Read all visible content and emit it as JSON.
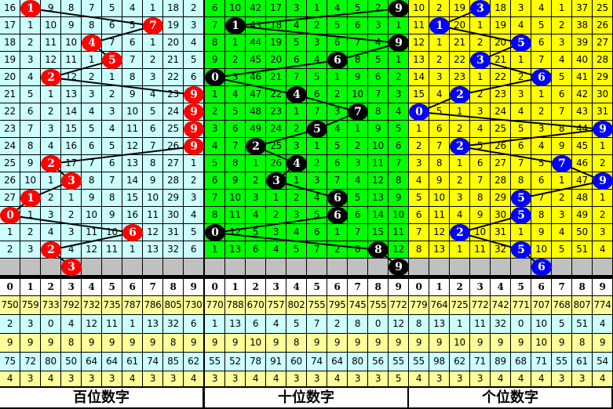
{
  "digits": [
    "0",
    "1",
    "2",
    "3",
    "4",
    "5",
    "6",
    "7",
    "8",
    "9"
  ],
  "colors": {
    "gray_row": "#c0c0c0",
    "stat_yellow": "#ffff99",
    "stat_cyan": "#ccffff",
    "grid": "#000000"
  },
  "panels": [
    {
      "label": "百位数字",
      "bg": "#ccffff",
      "ball_color": "#ff0000",
      "balls": [
        1,
        7,
        4,
        5,
        2,
        9,
        9,
        9,
        9,
        2,
        3,
        1,
        0,
        6,
        2
      ],
      "next_ball": 3,
      "rows": [
        [
          "16",
          null,
          "9",
          "8",
          "7",
          "5",
          "4",
          "1",
          "18",
          "2"
        ],
        [
          "17",
          "1",
          "10",
          "9",
          "8",
          "6",
          "5",
          null,
          "19",
          "3"
        ],
        [
          "18",
          "2",
          "11",
          "10",
          null,
          "7",
          "6",
          "1",
          "20",
          "4"
        ],
        [
          "19",
          "3",
          "12",
          "11",
          "1",
          null,
          "7",
          "2",
          "21",
          "5"
        ],
        [
          "20",
          "4",
          null,
          "12",
          "2",
          "1",
          "8",
          "3",
          "22",
          "6"
        ],
        [
          "21",
          "5",
          "1",
          "13",
          "3",
          "2",
          "9",
          "4",
          "23",
          null
        ],
        [
          "22",
          "6",
          "2",
          "14",
          "4",
          "3",
          "10",
          "5",
          "24",
          null
        ],
        [
          "23",
          "7",
          "3",
          "15",
          "5",
          "4",
          "11",
          "6",
          "25",
          null
        ],
        [
          "24",
          "8",
          "4",
          "16",
          "6",
          "5",
          "12",
          "7",
          "26",
          null
        ],
        [
          "25",
          "9",
          null,
          "17",
          "7",
          "6",
          "13",
          "8",
          "27",
          "1"
        ],
        [
          "26",
          "10",
          "1",
          null,
          "8",
          "7",
          "14",
          "9",
          "28",
          "2"
        ],
        [
          "27",
          null,
          "2",
          "1",
          "9",
          "8",
          "15",
          "10",
          "29",
          "3"
        ],
        [
          null,
          "1",
          "3",
          "2",
          "10",
          "9",
          "16",
          "11",
          "30",
          "4"
        ],
        [
          "1",
          "2",
          "4",
          "3",
          "11",
          "10",
          null,
          "12",
          "31",
          "5"
        ],
        [
          "2",
          "3",
          null,
          "4",
          "12",
          "11",
          "1",
          "13",
          "32",
          "6"
        ]
      ],
      "stats": [
        [
          "750",
          "759",
          "733",
          "792",
          "732",
          "735",
          "787",
          "786",
          "805",
          "730"
        ],
        [
          "2",
          "3",
          "0",
          "4",
          "12",
          "11",
          "1",
          "13",
          "32",
          "6"
        ],
        [
          "9",
          "9",
          "9",
          "8",
          "9",
          "9",
          "9",
          "9",
          "8",
          "9"
        ],
        [
          "75",
          "72",
          "80",
          "50",
          "64",
          "64",
          "61",
          "74",
          "85",
          "62"
        ],
        [
          "4",
          "3",
          "4",
          "3",
          "3",
          "3",
          "4",
          "3",
          "3",
          "4"
        ]
      ]
    },
    {
      "label": "十位数字",
      "bg": "#00ff00",
      "ball_color": "#000000",
      "balls": [
        9,
        1,
        9,
        6,
        0,
        4,
        7,
        5,
        2,
        4,
        3,
        6,
        6,
        0,
        8
      ],
      "next_ball": 9,
      "rows": [
        [
          "6",
          "10",
          "42",
          "17",
          "3",
          "1",
          "4",
          "5",
          "2",
          null
        ],
        [
          "7",
          null,
          "43",
          "18",
          "4",
          "2",
          "5",
          "6",
          "3",
          "1"
        ],
        [
          "8",
          "1",
          "44",
          "19",
          "5",
          "3",
          "6",
          "7",
          "4",
          null
        ],
        [
          "9",
          "2",
          "45",
          "20",
          "6",
          "4",
          null,
          "8",
          "5",
          "1"
        ],
        [
          null,
          "3",
          "46",
          "21",
          "7",
          "5",
          "1",
          "9",
          "6",
          "2"
        ],
        [
          "1",
          "4",
          "47",
          "22",
          null,
          "6",
          "2",
          "10",
          "7",
          "3"
        ],
        [
          "2",
          "5",
          "48",
          "23",
          "1",
          "7",
          "3",
          null,
          "8",
          "4"
        ],
        [
          "3",
          "6",
          "49",
          "24",
          "2",
          null,
          "4",
          "1",
          "9",
          "5"
        ],
        [
          "4",
          "7",
          null,
          "25",
          "3",
          "1",
          "5",
          "2",
          "10",
          "6"
        ],
        [
          "5",
          "8",
          "1",
          "26",
          null,
          "2",
          "6",
          "3",
          "11",
          "7"
        ],
        [
          "6",
          "9",
          "2",
          null,
          "1",
          "3",
          "7",
          "4",
          "12",
          "8"
        ],
        [
          "7",
          "10",
          "3",
          "1",
          "2",
          "4",
          null,
          "5",
          "13",
          "9"
        ],
        [
          "8",
          "11",
          "4",
          "2",
          "3",
          "5",
          null,
          "6",
          "14",
          "10"
        ],
        [
          null,
          "12",
          "5",
          "3",
          "4",
          "6",
          "1",
          "7",
          "15",
          "11"
        ],
        [
          "1",
          "13",
          "6",
          "4",
          "5",
          "7",
          "2",
          "8",
          null,
          "12"
        ]
      ],
      "stats": [
        [
          "770",
          "788",
          "670",
          "757",
          "802",
          "755",
          "795",
          "745",
          "755",
          "772"
        ],
        [
          "1",
          "13",
          "6",
          "4",
          "5",
          "7",
          "2",
          "8",
          "0",
          "12"
        ],
        [
          "9",
          "9",
          "10",
          "9",
          "8",
          "9",
          "9",
          "9",
          "9",
          "9"
        ],
        [
          "55",
          "52",
          "78",
          "91",
          "60",
          "74",
          "64",
          "80",
          "56",
          "55"
        ],
        [
          "3",
          "3",
          "4",
          "4",
          "3",
          "3",
          "4",
          "3",
          "3",
          "5"
        ]
      ]
    },
    {
      "label": "个位数字",
      "bg": "#ffff00",
      "ball_color": "#0000ff",
      "balls": [
        3,
        1,
        5,
        3,
        6,
        2,
        0,
        9,
        2,
        7,
        9,
        5,
        5,
        2,
        5
      ],
      "next_ball": 6,
      "rows": [
        [
          "10",
          "2",
          "19",
          null,
          "18",
          "3",
          "4",
          "1",
          "37",
          "25"
        ],
        [
          "11",
          null,
          "20",
          "1",
          "19",
          "4",
          "5",
          "2",
          "38",
          "26"
        ],
        [
          "12",
          "1",
          "21",
          "2",
          "20",
          null,
          "6",
          "3",
          "39",
          "27"
        ],
        [
          "13",
          "2",
          "22",
          null,
          "21",
          "1",
          "7",
          "4",
          "40",
          "28"
        ],
        [
          "14",
          "3",
          "23",
          "1",
          "22",
          "2",
          null,
          "5",
          "41",
          "29"
        ],
        [
          "15",
          "4",
          null,
          "2",
          "23",
          "3",
          "1",
          "6",
          "42",
          "30"
        ],
        [
          null,
          "5",
          "1",
          "3",
          "24",
          "4",
          "2",
          "7",
          "43",
          "31"
        ],
        [
          "1",
          "6",
          "2",
          "4",
          "25",
          "5",
          "3",
          "8",
          "44",
          null
        ],
        [
          "2",
          "7",
          null,
          "5",
          "26",
          "6",
          "4",
          "9",
          "45",
          "1"
        ],
        [
          "3",
          "8",
          "1",
          "6",
          "27",
          "7",
          "5",
          null,
          "46",
          "2"
        ],
        [
          "4",
          "9",
          "2",
          "7",
          "28",
          "8",
          "6",
          "1",
          "47",
          null
        ],
        [
          "5",
          "10",
          "3",
          "8",
          "29",
          null,
          "7",
          "2",
          "48",
          "1"
        ],
        [
          "6",
          "11",
          "4",
          "9",
          "30",
          null,
          "8",
          "3",
          "49",
          "2"
        ],
        [
          "7",
          "12",
          null,
          "10",
          "31",
          "1",
          "9",
          "4",
          "50",
          "3"
        ],
        [
          "8",
          "13",
          "1",
          "11",
          "32",
          null,
          "10",
          "5",
          "51",
          "4"
        ]
      ],
      "stats": [
        [
          "779",
          "764",
          "725",
          "772",
          "742",
          "771",
          "707",
          "768",
          "807",
          "774"
        ],
        [
          "8",
          "13",
          "1",
          "11",
          "32",
          "0",
          "10",
          "5",
          "51",
          "4"
        ],
        [
          "9",
          "9",
          "10",
          "9",
          "9",
          "9",
          "10",
          "9",
          "8",
          "9"
        ],
        [
          "55",
          "98",
          "62",
          "71",
          "89",
          "68",
          "71",
          "55",
          "61",
          "54"
        ],
        [
          "4",
          "3",
          "3",
          "3",
          "4",
          "4",
          "4",
          "3",
          "3",
          "4"
        ]
      ]
    }
  ]
}
